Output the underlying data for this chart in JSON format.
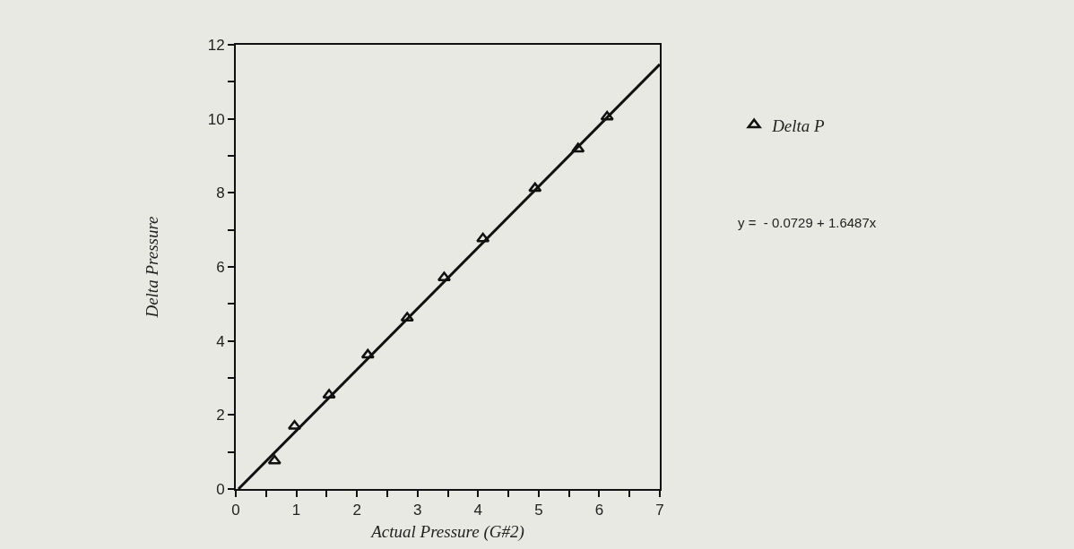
{
  "chart_data": {
    "type": "scatter",
    "xlabel": "Actual Pressure (G#2)",
    "ylabel": "Delta Pressure",
    "series": [
      {
        "name": "Delta P",
        "color": "#111111",
        "marker": "triangle",
        "x": [
          0.64,
          0.97,
          1.54,
          2.18,
          2.83,
          3.44,
          4.08,
          4.94,
          5.65,
          6.13
        ],
        "values": [
          0.76,
          1.7,
          2.54,
          3.62,
          4.62,
          5.71,
          6.76,
          8.12,
          9.19,
          10.05
        ]
      },
      {
        "type": "line",
        "color": "#111111",
        "line_style": "solid",
        "x": [
          0.0442,
          7
        ],
        "values": [
          0,
          11.47
        ]
      }
    ],
    "annotations": [
      "y =  - 0.0729 + 1.6487x"
    ],
    "xlim": [
      0,
      7
    ],
    "ylim": [
      0,
      12
    ],
    "xticks": [
      0,
      {
        "value": 0.5,
        "label": null
      },
      1,
      {
        "value": 1.5,
        "label": null
      },
      2,
      {
        "value": 2.5,
        "label": null
      },
      3,
      {
        "value": 3.5,
        "label": null
      },
      4,
      {
        "value": 4.5,
        "label": null
      },
      5,
      {
        "value": 5.5,
        "label": null
      },
      6,
      {
        "value": 6.5,
        "label": null
      },
      7
    ],
    "yticks": [
      0,
      {
        "value": 1,
        "label": null
      },
      2,
      {
        "value": 3,
        "label": null
      },
      4,
      {
        "value": 5,
        "label": null
      },
      6,
      {
        "value": 7,
        "label": null
      },
      8,
      {
        "value": 9,
        "label": null
      },
      10,
      {
        "value": 11,
        "label": null
      },
      12
    ],
    "grid": false,
    "legend": "right"
  }
}
